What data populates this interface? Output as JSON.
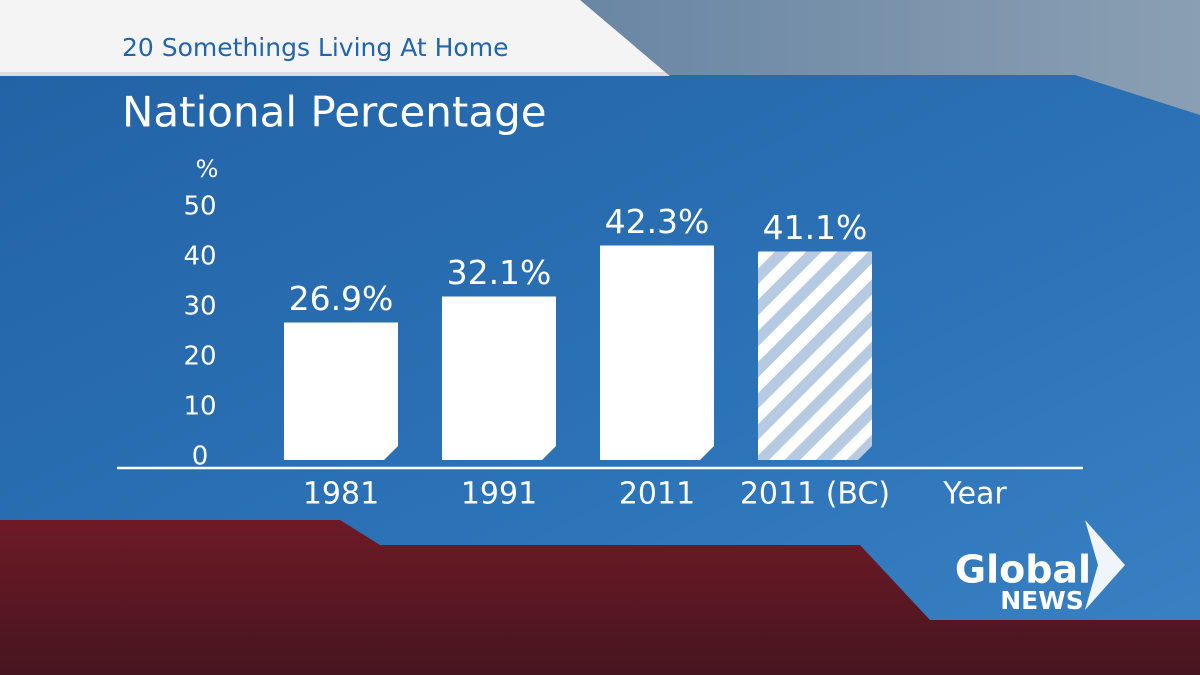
{
  "chart_data": {
    "type": "bar",
    "subtitle": "20 Somethings Living At Home",
    "title": "National Percentage",
    "y_label": "%",
    "x_label": "Year",
    "categories": [
      "1981",
      "1991",
      "2011",
      "2011 (BC)"
    ],
    "values": [
      26.9,
      32.1,
      42.3,
      41.1
    ],
    "value_labels": [
      "26.9%",
      "32.1%",
      "42.3%",
      "41.1%"
    ],
    "hatch": [
      false,
      false,
      false,
      true
    ],
    "color": "#ffffff",
    "hatch_color": "#b6cbe2",
    "ylim": [
      0,
      50
    ],
    "yticks": [
      0,
      10,
      20,
      30,
      40,
      50
    ],
    "grid": false
  },
  "branding": {
    "name": "Global",
    "sub": "NEWS"
  }
}
